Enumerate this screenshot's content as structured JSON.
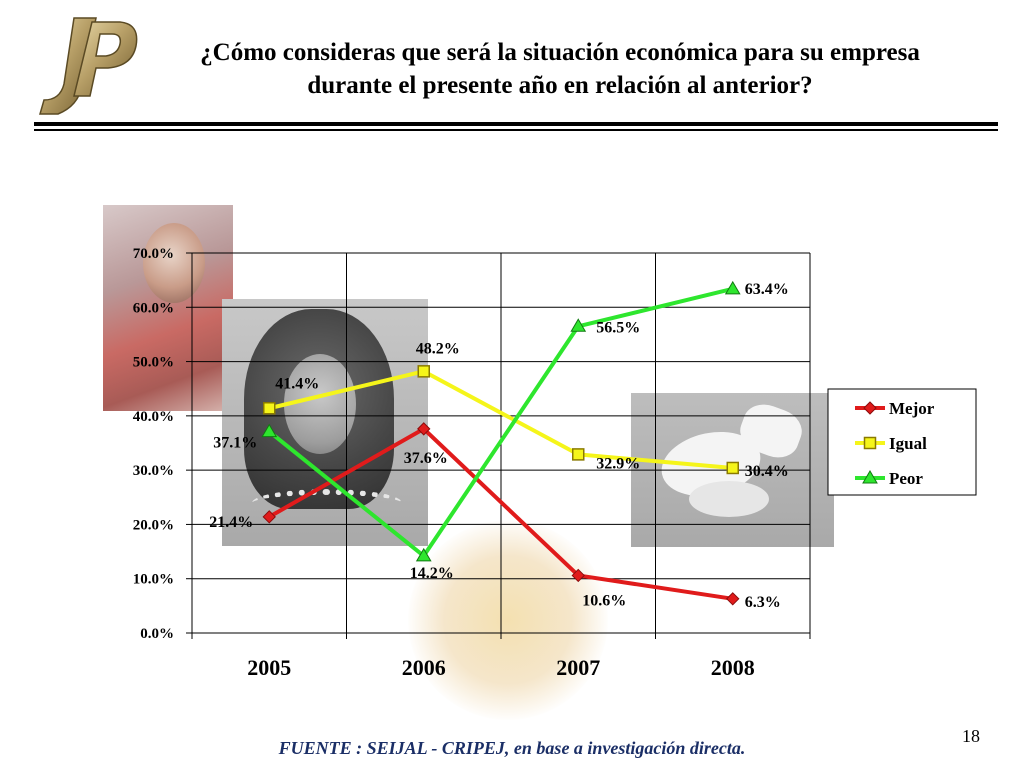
{
  "slide": {
    "title": "¿Cómo consideras que será la situación económica para su empresa durante el presente año en relación al anterior?",
    "title_line1": "¿Cómo consideras que será la situación económica para su empresa",
    "title_line2": "durante el presente año en relación al anterior?",
    "page_number": "18",
    "source": "FUENTE :  SEIJAL - CRIPEJ,  en base a investigación directa."
  },
  "logo": {
    "icon": "jp-logo-icon",
    "color": "#b8a068"
  },
  "colors": {
    "mejor": "#e01b1b",
    "igual": "#f5f51a",
    "peor": "#2ee62e",
    "source_text": "#1a2e66"
  },
  "chart_data": {
    "type": "line",
    "categories": [
      "2005",
      "2006",
      "2007",
      "2008"
    ],
    "ylim": [
      0,
      70
    ],
    "yticks": [
      "0.0%",
      "10.0%",
      "20.0%",
      "30.0%",
      "40.0%",
      "50.0%",
      "60.0%",
      "70.0%"
    ],
    "grid": true,
    "legend_position": "right",
    "series": [
      {
        "name": "Mejor",
        "values": [
          21.4,
          37.6,
          10.6,
          6.3
        ],
        "labels": [
          "21.4%",
          "37.6%",
          "10.6%",
          "6.3%"
        ],
        "color": "#e01b1b",
        "marker": "diamond"
      },
      {
        "name": "Igual",
        "values": [
          41.4,
          48.2,
          32.9,
          30.4
        ],
        "labels": [
          "41.4%",
          "48.2%",
          "32.9%",
          "30.4%"
        ],
        "color": "#f5f51a",
        "marker": "square"
      },
      {
        "name": "Peor",
        "values": [
          37.1,
          14.2,
          56.5,
          63.4
        ],
        "labels": [
          "37.1%",
          "14.2%",
          "56.5%",
          "63.4%"
        ],
        "color": "#2ee62e",
        "marker": "triangle"
      }
    ]
  }
}
